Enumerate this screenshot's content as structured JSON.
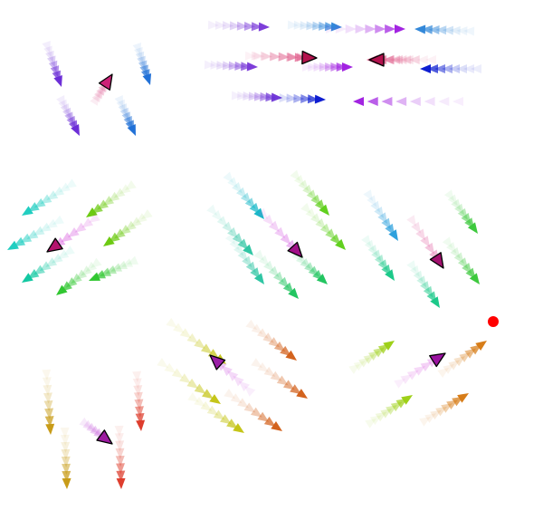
{
  "colors": {
    "background": "#ffffff",
    "target_outline": "#000000",
    "goal_dot": "#ff0000"
  },
  "panels": [
    {
      "name": "panel-top-left",
      "target_color": "#cc2277",
      "trail_colors": [
        "#6a2bd6",
        "#1f6fd6",
        "#e0699c"
      ]
    },
    {
      "name": "panel-top-right",
      "target_color": "#b3124e",
      "trail_colors": [
        "#7a3ad8",
        "#2f86d8",
        "#0a1ad0",
        "#a020e0",
        "#e05c8a"
      ]
    },
    {
      "name": "panel-middle-left",
      "target_color": "#b4146e",
      "trail_colors": [
        "#1ecdc0",
        "#6ac90e",
        "#0ec7a0",
        "#2ec62e",
        "#d03bd8"
      ]
    },
    {
      "name": "panel-middle-center",
      "target_color": "#a01088",
      "trail_colors": [
        "#14b7c7",
        "#2cc5a2",
        "#5fcf1b",
        "#1fc45e",
        "#d24fdf"
      ]
    },
    {
      "name": "panel-middle-right",
      "target_color": "#a2106e",
      "trail_colors": [
        "#2a9fdc",
        "#18c888",
        "#3ac83a",
        "#e05ca0"
      ]
    },
    {
      "name": "panel-bottom-left",
      "target_color": "#9c1aa0",
      "trail_colors": [
        "#c79a14",
        "#dd3a2a",
        "#c050d8"
      ]
    },
    {
      "name": "panel-bottom-center",
      "target_color": "#9a1fa6",
      "trail_colors": [
        "#c4c414",
        "#d2601a",
        "#d97fe7"
      ]
    },
    {
      "name": "panel-bottom-right",
      "target_color": "#9a12a0",
      "trail_colors": [
        "#9ccf14",
        "#d67a14",
        "#e07de6"
      ]
    }
  ]
}
